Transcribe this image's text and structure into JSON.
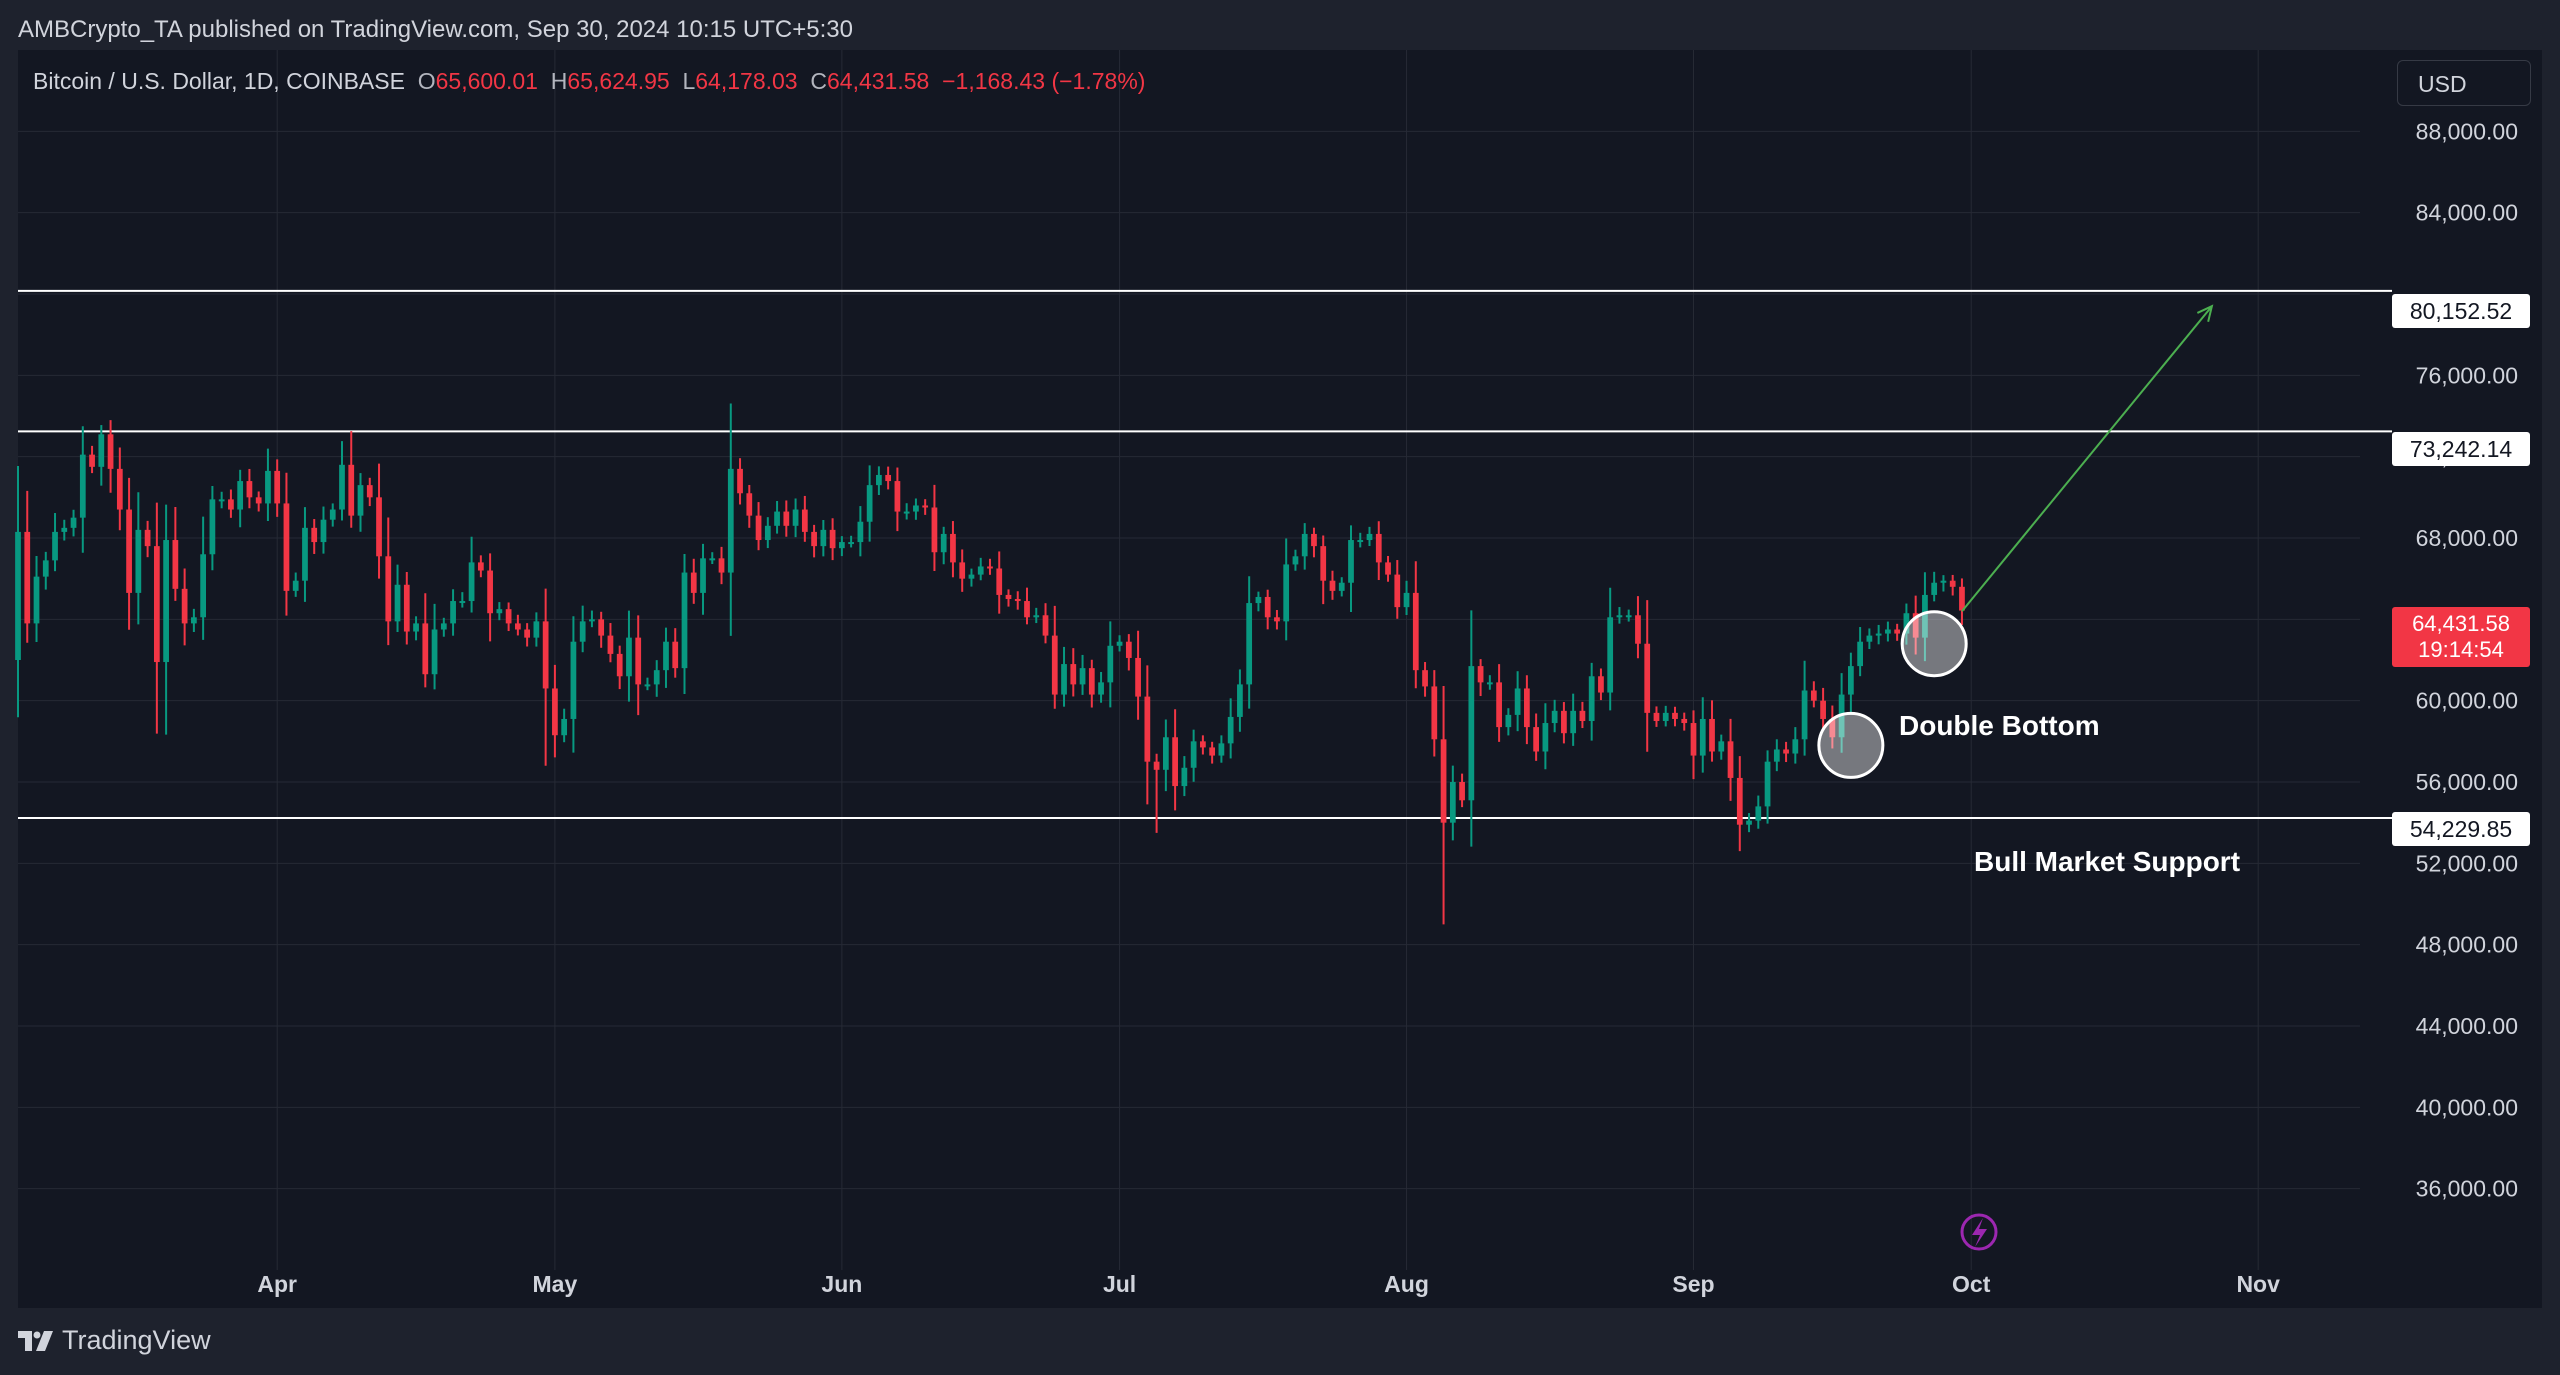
{
  "header": {
    "publisher": "AMBCrypto_TA published on TradingView.com, Sep 30, 2024 10:15 UTC+5:30"
  },
  "legend": {
    "symbol": "Bitcoin / U.S. Dollar, 1D, COINBASE",
    "open_label": "O",
    "open": "65,600.01",
    "high_label": "H",
    "high": "65,624.95",
    "low_label": "L",
    "low": "64,178.03",
    "close_label": "C",
    "close": "64,431.58",
    "change": "−1,168.43 (−1.78%)"
  },
  "currency_button": "USD",
  "footer": {
    "brand": "TradingView"
  },
  "annotations": {
    "double_bottom": "Double Bottom",
    "bull_support": "Bull Market Support"
  },
  "price_tag": {
    "price": "64,431.58",
    "countdown": "19:14:54"
  },
  "colors": {
    "background": "#131722",
    "up": "#089981",
    "down": "#f23645",
    "grid": "#262a35",
    "arrow": "#4caf50",
    "axis_text": "#d1d4dc"
  },
  "chart_data": {
    "type": "candlestick",
    "interval": "1D",
    "y_axis": {
      "ticks": [
        36000,
        40000,
        44000,
        48000,
        52000,
        56000,
        60000,
        64000,
        68000,
        72000,
        76000,
        80000,
        84000,
        88000
      ],
      "tick_labels": [
        "36,000.00",
        "40,000.00",
        "44,000.00",
        "48,000.00",
        "52,000.00",
        "56,000.00",
        "60,000.00",
        "",
        "68,000.00",
        "72,000.00",
        "76,000.00",
        "",
        "84,000.00",
        "88,000.00"
      ],
      "ylim": [
        32000,
        92000
      ]
    },
    "x_axis": {
      "labels": [
        {
          "label": "Apr",
          "date": "2024-04-01"
        },
        {
          "label": "May",
          "date": "2024-05-01"
        },
        {
          "label": "Jun",
          "date": "2024-06-01"
        },
        {
          "label": "Jul",
          "date": "2024-07-01"
        },
        {
          "label": "Aug",
          "date": "2024-08-01"
        },
        {
          "label": "Sep",
          "date": "2024-09-01"
        },
        {
          "label": "Oct",
          "date": "2024-10-01"
        },
        {
          "label": "Nov",
          "date": "2024-11-01"
        }
      ],
      "xlim": [
        "2024-03-04",
        "2024-11-12"
      ]
    },
    "horizontal_lines": [
      {
        "value": 80152.52,
        "label": "80,152.52"
      },
      {
        "value": 73242.14,
        "label": "73,242.14"
      },
      {
        "value": 54229.85,
        "label": "54,229.85"
      }
    ],
    "circles": [
      {
        "date": "2024-09-18",
        "price": 57800
      },
      {
        "date": "2024-09-27",
        "price": 62800
      }
    ],
    "arrow": {
      "from": {
        "date": "2024-09-30",
        "price": 64400
      },
      "to": {
        "date": "2024-10-27",
        "price": 79400
      }
    },
    "closes": [
      [
        "2024-03-03",
        62000
      ],
      [
        "2024-03-04",
        68300
      ],
      [
        "2024-03-05",
        63800
      ],
      [
        "2024-03-06",
        66100
      ],
      [
        "2024-03-07",
        66900
      ],
      [
        "2024-03-08",
        68300
      ],
      [
        "2024-03-09",
        68500
      ],
      [
        "2024-03-10",
        69000
      ],
      [
        "2024-03-11",
        72100
      ],
      [
        "2024-03-12",
        71500
      ],
      [
        "2024-03-13",
        73100
      ],
      [
        "2024-03-14",
        71400
      ],
      [
        "2024-03-15",
        69400
      ],
      [
        "2024-03-16",
        65300
      ],
      [
        "2024-03-17",
        68400
      ],
      [
        "2024-03-18",
        67600
      ],
      [
        "2024-03-19",
        61900
      ],
      [
        "2024-03-20",
        67900
      ],
      [
        "2024-03-21",
        65500
      ],
      [
        "2024-03-22",
        63800
      ],
      [
        "2024-03-23",
        64100
      ],
      [
        "2024-03-24",
        67200
      ],
      [
        "2024-03-25",
        69900
      ],
      [
        "2024-03-26",
        69900
      ],
      [
        "2024-03-27",
        69400
      ],
      [
        "2024-03-28",
        70800
      ],
      [
        "2024-03-29",
        70000
      ],
      [
        "2024-03-30",
        69700
      ],
      [
        "2024-03-31",
        71300
      ],
      [
        "2024-04-01",
        69700
      ],
      [
        "2024-04-02",
        65400
      ],
      [
        "2024-04-03",
        65900
      ],
      [
        "2024-04-04",
        68500
      ],
      [
        "2024-04-05",
        67800
      ],
      [
        "2024-04-06",
        68900
      ],
      [
        "2024-04-07",
        69400
      ],
      [
        "2024-04-08",
        71600
      ],
      [
        "2024-04-09",
        69100
      ],
      [
        "2024-04-10",
        70600
      ],
      [
        "2024-04-11",
        70000
      ],
      [
        "2024-04-12",
        67100
      ],
      [
        "2024-04-13",
        63900
      ],
      [
        "2024-04-14",
        65700
      ],
      [
        "2024-04-15",
        63400
      ],
      [
        "2024-04-16",
        63800
      ],
      [
        "2024-04-17",
        61300
      ],
      [
        "2024-04-18",
        63500
      ],
      [
        "2024-04-19",
        63800
      ],
      [
        "2024-04-20",
        64900
      ],
      [
        "2024-04-21",
        64900
      ],
      [
        "2024-04-22",
        66800
      ],
      [
        "2024-04-23",
        66400
      ],
      [
        "2024-04-24",
        64300
      ],
      [
        "2024-04-25",
        64500
      ],
      [
        "2024-04-26",
        63800
      ],
      [
        "2024-04-27",
        63500
      ],
      [
        "2024-04-28",
        63100
      ],
      [
        "2024-04-29",
        63900
      ],
      [
        "2024-04-30",
        60600
      ],
      [
        "2024-05-01",
        58300
      ],
      [
        "2024-05-02",
        59100
      ],
      [
        "2024-05-03",
        62900
      ],
      [
        "2024-05-04",
        63900
      ],
      [
        "2024-05-05",
        64000
      ],
      [
        "2024-05-06",
        63200
      ],
      [
        "2024-05-07",
        62300
      ],
      [
        "2024-05-08",
        61200
      ],
      [
        "2024-05-09",
        63100
      ],
      [
        "2024-05-10",
        60800
      ],
      [
        "2024-05-11",
        60800
      ],
      [
        "2024-05-12",
        61500
      ],
      [
        "2024-05-13",
        62900
      ],
      [
        "2024-05-14",
        61600
      ],
      [
        "2024-05-15",
        66300
      ],
      [
        "2024-05-16",
        65300
      ],
      [
        "2024-05-17",
        67000
      ],
      [
        "2024-05-18",
        67000
      ],
      [
        "2024-05-19",
        66300
      ],
      [
        "2024-05-20",
        71400
      ],
      [
        "2024-05-21",
        70200
      ],
      [
        "2024-05-22",
        69100
      ],
      [
        "2024-05-23",
        67900
      ],
      [
        "2024-05-24",
        68600
      ],
      [
        "2024-05-25",
        69300
      ],
      [
        "2024-05-26",
        68600
      ],
      [
        "2024-05-27",
        69400
      ],
      [
        "2024-05-28",
        68300
      ],
      [
        "2024-05-29",
        67600
      ],
      [
        "2024-05-30",
        68400
      ],
      [
        "2024-05-31",
        67500
      ],
      [
        "2024-06-01",
        67800
      ],
      [
        "2024-06-02",
        67800
      ],
      [
        "2024-06-03",
        68800
      ],
      [
        "2024-06-04",
        70600
      ],
      [
        "2024-06-05",
        71100
      ],
      [
        "2024-06-06",
        70800
      ],
      [
        "2024-06-07",
        69300
      ],
      [
        "2024-06-08",
        69300
      ],
      [
        "2024-06-09",
        69600
      ],
      [
        "2024-06-10",
        69500
      ],
      [
        "2024-06-11",
        67300
      ],
      [
        "2024-06-12",
        68200
      ],
      [
        "2024-06-13",
        66800
      ],
      [
        "2024-06-14",
        66000
      ],
      [
        "2024-06-15",
        66200
      ],
      [
        "2024-06-16",
        66600
      ],
      [
        "2024-06-17",
        66500
      ],
      [
        "2024-06-18",
        65200
      ],
      [
        "2024-06-19",
        65000
      ],
      [
        "2024-06-20",
        64900
      ],
      [
        "2024-06-21",
        64100
      ],
      [
        "2024-06-22",
        64200
      ],
      [
        "2024-06-23",
        63200
      ],
      [
        "2024-06-24",
        60300
      ],
      [
        "2024-06-25",
        61800
      ],
      [
        "2024-06-26",
        60800
      ],
      [
        "2024-06-27",
        61600
      ],
      [
        "2024-06-28",
        60300
      ],
      [
        "2024-06-29",
        60900
      ],
      [
        "2024-06-30",
        62700
      ],
      [
        "2024-07-01",
        62900
      ],
      [
        "2024-07-02",
        62100
      ],
      [
        "2024-07-03",
        60200
      ],
      [
        "2024-07-04",
        57000
      ],
      [
        "2024-07-05",
        56600
      ],
      [
        "2024-07-06",
        58200
      ],
      [
        "2024-07-07",
        55800
      ],
      [
        "2024-07-08",
        56700
      ],
      [
        "2024-07-09",
        58000
      ],
      [
        "2024-07-10",
        57700
      ],
      [
        "2024-07-11",
        57300
      ],
      [
        "2024-07-12",
        57900
      ],
      [
        "2024-07-13",
        59200
      ],
      [
        "2024-07-14",
        60800
      ],
      [
        "2024-07-15",
        64800
      ],
      [
        "2024-07-16",
        65100
      ],
      [
        "2024-07-17",
        64100
      ],
      [
        "2024-07-18",
        63900
      ],
      [
        "2024-07-19",
        66700
      ],
      [
        "2024-07-20",
        67100
      ],
      [
        "2024-07-21",
        68200
      ],
      [
        "2024-07-22",
        67600
      ],
      [
        "2024-07-23",
        65900
      ],
      [
        "2024-07-24",
        65400
      ],
      [
        "2024-07-25",
        65800
      ],
      [
        "2024-07-26",
        67900
      ],
      [
        "2024-07-27",
        67900
      ],
      [
        "2024-07-28",
        68200
      ],
      [
        "2024-07-29",
        66800
      ],
      [
        "2024-07-30",
        66200
      ],
      [
        "2024-07-31",
        64600
      ],
      [
        "2024-08-01",
        65300
      ],
      [
        "2024-08-02",
        61500
      ],
      [
        "2024-08-03",
        60700
      ],
      [
        "2024-08-04",
        58100
      ],
      [
        "2024-08-05",
        54000
      ],
      [
        "2024-08-06",
        56000
      ],
      [
        "2024-08-07",
        55100
      ],
      [
        "2024-08-08",
        61700
      ],
      [
        "2024-08-09",
        60900
      ],
      [
        "2024-08-10",
        60900
      ],
      [
        "2024-08-11",
        58700
      ],
      [
        "2024-08-12",
        59300
      ],
      [
        "2024-08-13",
        60600
      ],
      [
        "2024-08-14",
        58700
      ],
      [
        "2024-08-15",
        57500
      ],
      [
        "2024-08-16",
        58900
      ],
      [
        "2024-08-17",
        59500
      ],
      [
        "2024-08-18",
        58400
      ],
      [
        "2024-08-19",
        59500
      ],
      [
        "2024-08-20",
        59000
      ],
      [
        "2024-08-21",
        61200
      ],
      [
        "2024-08-22",
        60400
      ],
      [
        "2024-08-23",
        64100
      ],
      [
        "2024-08-24",
        64200
      ],
      [
        "2024-08-25",
        64200
      ],
      [
        "2024-08-26",
        62800
      ],
      [
        "2024-08-27",
        59400
      ],
      [
        "2024-08-28",
        59000
      ],
      [
        "2024-08-29",
        59400
      ],
      [
        "2024-08-30",
        59100
      ],
      [
        "2024-08-31",
        58900
      ],
      [
        "2024-09-01",
        57300
      ],
      [
        "2024-09-02",
        59100
      ],
      [
        "2024-09-03",
        57500
      ],
      [
        "2024-09-04",
        58000
      ],
      [
        "2024-09-05",
        56200
      ],
      [
        "2024-09-06",
        53900
      ],
      [
        "2024-09-07",
        54100
      ],
      [
        "2024-09-08",
        54800
      ],
      [
        "2024-09-09",
        57000
      ],
      [
        "2024-09-10",
        57600
      ],
      [
        "2024-09-11",
        57400
      ],
      [
        "2024-09-12",
        58100
      ],
      [
        "2024-09-13",
        60500
      ],
      [
        "2024-09-14",
        60000
      ],
      [
        "2024-09-15",
        59100
      ],
      [
        "2024-09-16",
        58200
      ],
      [
        "2024-09-17",
        60300
      ],
      [
        "2024-09-18",
        61700
      ],
      [
        "2024-09-19",
        62900
      ],
      [
        "2024-09-20",
        63200
      ],
      [
        "2024-09-21",
        63300
      ],
      [
        "2024-09-22",
        63500
      ],
      [
        "2024-09-23",
        63300
      ],
      [
        "2024-09-24",
        64300
      ],
      [
        "2024-09-25",
        63100
      ],
      [
        "2024-09-26",
        65200
      ],
      [
        "2024-09-27",
        65800
      ],
      [
        "2024-09-28",
        65900
      ],
      [
        "2024-09-29",
        65600
      ],
      [
        "2024-09-30",
        64431.58
      ]
    ]
  }
}
